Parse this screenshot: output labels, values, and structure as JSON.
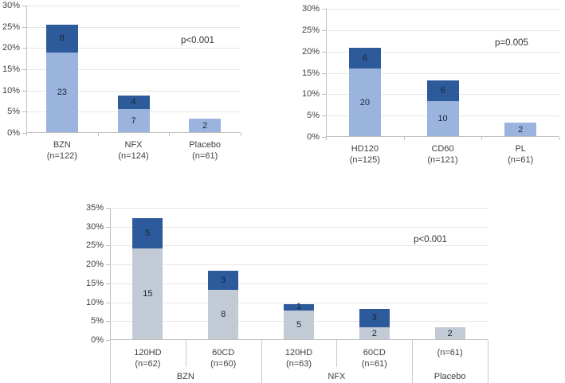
{
  "colors": {
    "light_blue": "#9bb4de",
    "dark_blue": "#2d5a9b",
    "gray_blue": "#c2cad6",
    "gridline": "#e7e7e7",
    "axis_line": "#bfbfbf",
    "label_text": "#404040",
    "count_text": "#1a2433",
    "background": "#ffffff"
  },
  "chart_data": [
    {
      "type": "bar",
      "subtype": "stacked",
      "position": "top-left",
      "title": "",
      "p_label": "p<0.001",
      "ylim": [
        0,
        30
      ],
      "yticks": [
        "30%",
        "25%",
        "20%",
        "15%",
        "10%",
        "5%",
        "0%"
      ],
      "grid": true,
      "legend": "none",
      "bar_colors": {
        "bottom": "#9bb4de",
        "top": "#2d5a9b"
      },
      "bars": [
        {
          "label": "BZN",
          "sublabel": "(n=122)",
          "segments": [
            {
              "value": 23,
              "pct": 18.9,
              "layer": "bottom"
            },
            {
              "value": 8,
              "pct": 6.6,
              "layer": "top"
            }
          ]
        },
        {
          "label": "NFX",
          "sublabel": "(n=124)",
          "segments": [
            {
              "value": 7,
              "pct": 5.6,
              "layer": "bottom"
            },
            {
              "value": 4,
              "pct": 3.2,
              "layer": "top"
            }
          ]
        },
        {
          "label": "Placebo",
          "sublabel": "(n=61)",
          "segments": [
            {
              "value": 2,
              "pct": 3.3,
              "layer": "bottom"
            }
          ]
        }
      ]
    },
    {
      "type": "bar",
      "subtype": "stacked",
      "position": "top-right",
      "title": "",
      "p_label": "p=0.005",
      "ylim": [
        0,
        30
      ],
      "yticks": [
        "30%",
        "25%",
        "20%",
        "15%",
        "10%",
        "5%",
        "0%"
      ],
      "grid": true,
      "legend": "none",
      "bar_colors": {
        "bottom": "#9bb4de",
        "top": "#2d5a9b"
      },
      "bars": [
        {
          "label": "HD120",
          "sublabel": "(n=125)",
          "segments": [
            {
              "value": 20,
              "pct": 16.0,
              "layer": "bottom"
            },
            {
              "value": 6,
              "pct": 4.8,
              "layer": "top"
            }
          ]
        },
        {
          "label": "CD60",
          "sublabel": "(n=121)",
          "segments": [
            {
              "value": 10,
              "pct": 8.3,
              "layer": "bottom"
            },
            {
              "value": 6,
              "pct": 5.0,
              "layer": "top"
            }
          ]
        },
        {
          "label": "PL",
          "sublabel": "(n=61)",
          "segments": [
            {
              "value": 2,
              "pct": 3.3,
              "layer": "bottom"
            }
          ]
        }
      ]
    },
    {
      "type": "bar",
      "subtype": "stacked",
      "position": "bottom",
      "title": "",
      "p_label": "p<0.001",
      "ylim": [
        0,
        35
      ],
      "yticks": [
        "35%",
        "30%",
        "25%",
        "20%",
        "15%",
        "10%",
        "5%",
        "0%"
      ],
      "grid": true,
      "legend": "none",
      "bar_colors": {
        "bottom": "#c2cad6",
        "top": "#2d5a9b"
      },
      "groups": [
        {
          "label": "BZN",
          "span": 2
        },
        {
          "label": "NFX",
          "span": 2
        },
        {
          "label": "Placebo",
          "span": 1
        }
      ],
      "bars": [
        {
          "label": "120HD",
          "sublabel": "(n=62)",
          "group": "BZN",
          "segments": [
            {
              "value": 15,
              "pct": 24.2,
              "layer": "bottom"
            },
            {
              "value": 5,
              "pct": 8.1,
              "layer": "top"
            }
          ]
        },
        {
          "label": "60CD",
          "sublabel": "(n=60)",
          "group": "BZN",
          "segments": [
            {
              "value": 8,
              "pct": 13.3,
              "layer": "bottom"
            },
            {
              "value": 3,
              "pct": 5.0,
              "layer": "top"
            }
          ]
        },
        {
          "label": "120HD",
          "sublabel": "(n=63)",
          "group": "NFX",
          "segments": [
            {
              "value": 5,
              "pct": 7.9,
              "layer": "bottom"
            },
            {
              "value": 1,
              "pct": 1.6,
              "layer": "top"
            }
          ]
        },
        {
          "label": "60CD",
          "sublabel": "(n=61)",
          "group": "NFX",
          "segments": [
            {
              "value": 2,
              "pct": 3.3,
              "layer": "bottom"
            },
            {
              "value": 3,
              "pct": 4.9,
              "layer": "top"
            }
          ]
        },
        {
          "label": "(n=61)",
          "sublabel": "",
          "group": "Placebo",
          "segments": [
            {
              "value": 2,
              "pct": 3.3,
              "layer": "bottom"
            }
          ]
        }
      ]
    }
  ]
}
